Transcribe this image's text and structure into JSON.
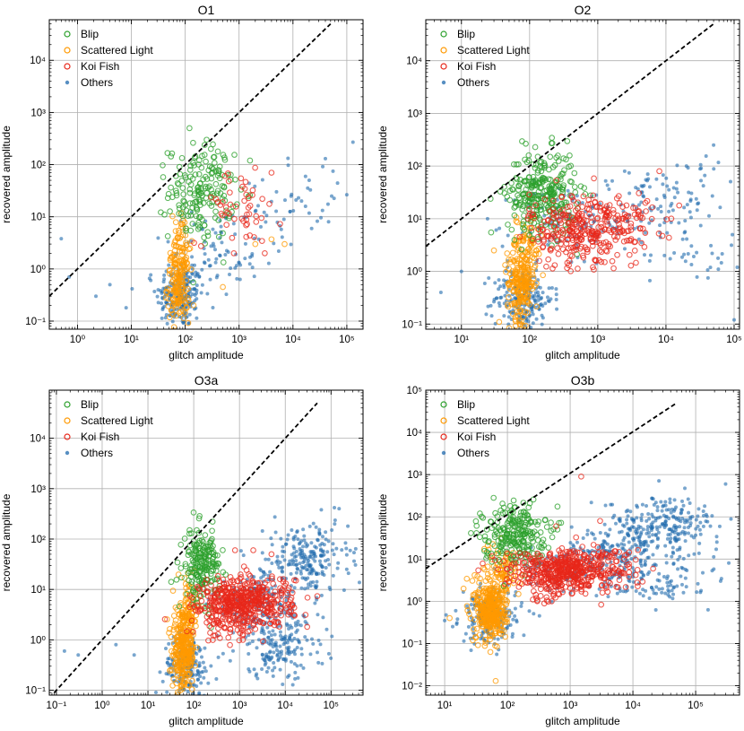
{
  "colors": {
    "blip": "#2ca02c",
    "scattered": "#ff9900",
    "koi": "#e8271a",
    "others": "#1f6aad",
    "diagonal": "#000000",
    "grid": "#b0b0b0"
  },
  "legend_labels": [
    "Blip",
    "Scattered Light",
    "Koi Fish",
    "Others"
  ],
  "chart_data": [
    {
      "type": "scatter",
      "title": "O1",
      "xlabel": "glitch amplitude",
      "ylabel": "recovered amplitude",
      "xscale": "log",
      "yscale": "log",
      "xlim": [
        0.3,
        200000
      ],
      "ylim": [
        0.07,
        60000
      ],
      "xticks": [
        1,
        10,
        100,
        1000,
        10000,
        100000
      ],
      "xtick_labels": [
        "10⁰",
        "10¹",
        "10²",
        "10³",
        "10⁴",
        "10⁵"
      ],
      "yticks": [
        0.1,
        1,
        10,
        100,
        1000,
        10000
      ],
      "ytick_labels": [
        "10⁻¹",
        "10⁰",
        "10¹",
        "10²",
        "10³",
        "10⁴"
      ],
      "grid": true,
      "legend": "top-left",
      "diagonal": {
        "x": [
          0.3,
          50000
        ],
        "y": [
          0.3,
          50000
        ]
      },
      "series": [
        {
          "name": "Others",
          "marker": "filled",
          "clusters": [
            {
              "cx": 80,
              "cy": 0.3,
              "sx": 0.22,
              "sy": 0.3,
              "n": 200
            },
            {
              "cx": 300,
              "cy": 1.5,
              "sx": 0.45,
              "sy": 0.35,
              "n": 70
            },
            {
              "cx": 2000,
              "cy": 8,
              "sx": 0.55,
              "sy": 0.4,
              "n": 35
            },
            {
              "cx": 20000,
              "cy": 25,
              "sx": 0.45,
              "sy": 0.4,
              "n": 30
            }
          ],
          "points": [
            [
              0.5,
              3.8
            ],
            [
              0.7,
              0.7
            ],
            [
              2.2,
              0.3
            ],
            [
              4,
              0.5
            ],
            [
              8,
              0.18
            ],
            [
              130000,
              270
            ],
            [
              40000,
              130
            ],
            [
              20000,
              50
            ]
          ]
        },
        {
          "name": "Scattered Light",
          "marker": "open",
          "clusters": [
            {
              "cx": 75,
              "cy": 0.5,
              "sx": 0.1,
              "sy": 0.35,
              "n": 150
            },
            {
              "cx": 85,
              "cy": 3,
              "sx": 0.1,
              "sy": 0.3,
              "n": 40
            }
          ],
          "points": [
            [
              500,
              0.45
            ],
            [
              2000,
              3
            ],
            [
              4000,
              3.7
            ],
            [
              7000,
              3
            ]
          ]
        },
        {
          "name": "Blip",
          "marker": "open",
          "clusters": [
            {
              "cx": 200,
              "cy": 30,
              "sx": 0.3,
              "sy": 0.45,
              "n": 180
            }
          ],
          "points": [
            [
              120,
              500
            ],
            [
              250,
              300
            ],
            [
              300,
              200
            ]
          ]
        },
        {
          "name": "Koi Fish",
          "marker": "open",
          "clusters": [
            {
              "cx": 1000,
              "cy": 15,
              "sx": 0.4,
              "sy": 0.35,
              "n": 50
            }
          ],
          "points": [
            [
              4000,
              70
            ],
            [
              800,
              2
            ],
            [
              3000,
              2
            ]
          ]
        }
      ]
    },
    {
      "type": "scatter",
      "title": "O2",
      "xlabel": "glitch amplitude",
      "ylabel": "recovered amplitude",
      "xscale": "log",
      "yscale": "log",
      "xlim": [
        3,
        120000
      ],
      "ylim": [
        0.08,
        60000
      ],
      "xticks": [
        10,
        100,
        1000,
        10000,
        100000
      ],
      "xtick_labels": [
        "10¹",
        "10²",
        "10³",
        "10⁴",
        "10⁵"
      ],
      "yticks": [
        0.1,
        1,
        10,
        100,
        1000,
        10000
      ],
      "ytick_labels": [
        "10⁻¹",
        "10⁰",
        "10¹",
        "10²",
        "10³",
        "10⁴"
      ],
      "grid": true,
      "legend": "top-left",
      "diagonal": {
        "x": [
          3,
          50000
        ],
        "y": [
          3,
          50000
        ]
      },
      "series": [
        {
          "name": "Others",
          "marker": "filled",
          "clusters": [
            {
              "cx": 80,
              "cy": 0.3,
              "sx": 0.22,
              "sy": 0.3,
              "n": 200
            },
            {
              "cx": 300,
              "cy": 8,
              "sx": 0.35,
              "sy": 0.4,
              "n": 80
            },
            {
              "cx": 5000,
              "cy": 15,
              "sx": 0.5,
              "sy": 0.35,
              "n": 80
            },
            {
              "cx": 20000,
              "cy": 40,
              "sx": 0.4,
              "sy": 0.35,
              "n": 40
            },
            {
              "cx": 30000,
              "cy": 2,
              "sx": 0.35,
              "sy": 0.2,
              "n": 30
            }
          ],
          "points": [
            [
              5,
              0.4
            ],
            [
              10,
              1
            ],
            [
              40,
              3
            ],
            [
              50000,
              250
            ],
            [
              100000,
              0.12
            ],
            [
              20000,
              100
            ]
          ]
        },
        {
          "name": "Scattered Light",
          "marker": "open",
          "clusters": [
            {
              "cx": 75,
              "cy": 0.6,
              "sx": 0.1,
              "sy": 0.35,
              "n": 200
            },
            {
              "cx": 90,
              "cy": 3,
              "sx": 0.12,
              "sy": 0.3,
              "n": 60
            }
          ],
          "points": [
            [
              30,
              2.5
            ]
          ]
        },
        {
          "name": "Blip",
          "marker": "open",
          "clusters": [
            {
              "cx": 150,
              "cy": 30,
              "sx": 0.25,
              "sy": 0.4,
              "n": 280
            }
          ],
          "points": [
            [
              200,
              150
            ]
          ]
        },
        {
          "name": "Koi Fish",
          "marker": "open",
          "clusters": [
            {
              "cx": 800,
              "cy": 8,
              "sx": 0.45,
              "sy": 0.3,
              "n": 280
            },
            {
              "cx": 500,
              "cy": 3,
              "sx": 0.3,
              "sy": 0.25,
              "n": 60
            }
          ],
          "points": [
            [
              8000,
              80
            ],
            [
              5000,
              20
            ]
          ]
        }
      ]
    },
    {
      "type": "scatter",
      "title": "O3a",
      "xlabel": "glitch amplitude",
      "ylabel": "recovered amplitude",
      "xscale": "log",
      "yscale": "log",
      "xlim": [
        0.07,
        500000
      ],
      "ylim": [
        0.08,
        90000
      ],
      "xticks": [
        0.1,
        1,
        10,
        100,
        1000,
        10000,
        100000
      ],
      "xtick_labels": [
        "10⁻¹",
        "10⁰",
        "10¹",
        "10²",
        "10³",
        "10⁴",
        "10⁵"
      ],
      "yticks": [
        0.1,
        1,
        10,
        100,
        1000,
        10000
      ],
      "ytick_labels": [
        "10⁻¹",
        "10⁰",
        "10¹",
        "10²",
        "10³",
        "10⁴"
      ],
      "grid": true,
      "legend": "top-left",
      "diagonal": {
        "x": [
          0.07,
          50000
        ],
        "y": [
          0.07,
          50000
        ]
      },
      "series": [
        {
          "name": "Others",
          "marker": "filled",
          "clusters": [
            {
              "cx": 70,
              "cy": 0.3,
              "sx": 0.25,
              "sy": 0.3,
              "n": 200
            },
            {
              "cx": 30000,
              "cy": 40,
              "sx": 0.45,
              "sy": 0.35,
              "n": 220
            },
            {
              "cx": 8000,
              "cy": 0.7,
              "sx": 0.5,
              "sy": 0.3,
              "n": 160
            },
            {
              "cx": 3000,
              "cy": 5,
              "sx": 0.55,
              "sy": 0.35,
              "n": 160
            }
          ],
          "points": [
            [
              0.15,
              0.6
            ],
            [
              0.3,
              0.5
            ],
            [
              2,
              0.8
            ],
            [
              5,
              0.5
            ],
            [
              150000,
              400
            ],
            [
              120000,
              200
            ]
          ]
        },
        {
          "name": "Scattered Light",
          "marker": "open",
          "clusters": [
            {
              "cx": 60,
              "cy": 0.6,
              "sx": 0.12,
              "sy": 0.38,
              "n": 280
            },
            {
              "cx": 80,
              "cy": 4,
              "sx": 0.12,
              "sy": 0.3,
              "n": 60
            }
          ],
          "points": []
        },
        {
          "name": "Blip",
          "marker": "open",
          "clusters": [
            {
              "cx": 150,
              "cy": 30,
              "sx": 0.2,
              "sy": 0.35,
              "n": 200
            }
          ],
          "points": [
            [
              250,
              100
            ]
          ]
        },
        {
          "name": "Koi Fish",
          "marker": "open",
          "clusters": [
            {
              "cx": 1500,
              "cy": 6,
              "sx": 0.5,
              "sy": 0.25,
              "n": 400
            },
            {
              "cx": 600,
              "cy": 3,
              "sx": 0.35,
              "sy": 0.25,
              "n": 120
            }
          ],
          "points": [
            [
              2000,
              60
            ],
            [
              5000,
              50
            ],
            [
              800,
              60
            ]
          ]
        }
      ]
    },
    {
      "type": "scatter",
      "title": "O3b",
      "xlabel": "glitch amplitude",
      "ylabel": "recovered amplitude",
      "xscale": "log",
      "yscale": "log",
      "xlim": [
        5,
        500000
      ],
      "ylim": [
        0.006,
        100000
      ],
      "xticks": [
        10,
        100,
        1000,
        10000,
        100000
      ],
      "xtick_labels": [
        "10¹",
        "10²",
        "10³",
        "10⁴",
        "10⁵"
      ],
      "yticks": [
        0.01,
        0.1,
        1,
        10,
        100,
        1000,
        10000,
        100000
      ],
      "ytick_labels": [
        "10⁻²",
        "10⁻¹",
        "10⁰",
        "10¹",
        "10²",
        "10³",
        "10⁴",
        "10⁵"
      ],
      "grid": true,
      "legend": "top-left",
      "diagonal": {
        "x": [
          5,
          50000
        ],
        "y": [
          6,
          50000
        ]
      },
      "series": [
        {
          "name": "Others",
          "marker": "filled",
          "clusters": [
            {
              "cx": 50,
              "cy": 0.4,
              "sx": 0.22,
              "sy": 0.3,
              "n": 180
            },
            {
              "cx": 30000,
              "cy": 60,
              "sx": 0.45,
              "sy": 0.35,
              "n": 240
            },
            {
              "cx": 5000,
              "cy": 15,
              "sx": 0.45,
              "sy": 0.3,
              "n": 160
            },
            {
              "cx": 20000,
              "cy": 3,
              "sx": 0.45,
              "sy": 0.25,
              "n": 100
            },
            {
              "cx": 500,
              "cy": 4,
              "sx": 0.45,
              "sy": 0.35,
              "n": 80
            }
          ],
          "points": [
            [
              10,
              0.35
            ],
            [
              15,
              0.6
            ],
            [
              300000,
              600
            ],
            [
              250000,
              3
            ]
          ]
        },
        {
          "name": "Scattered Light",
          "marker": "open",
          "clusters": [
            {
              "cx": 55,
              "cy": 0.6,
              "sx": 0.12,
              "sy": 0.35,
              "n": 350
            },
            {
              "cx": 80,
              "cy": 5,
              "sx": 0.15,
              "sy": 0.35,
              "n": 80
            }
          ],
          "points": [
            [
              65,
              0.013
            ],
            [
              20,
              2
            ],
            [
              12,
              0.4
            ]
          ]
        },
        {
          "name": "Blip",
          "marker": "open",
          "clusters": [
            {
              "cx": 130,
              "cy": 40,
              "sx": 0.25,
              "sy": 0.35,
              "n": 240
            }
          ],
          "points": [
            [
              180,
              130
            ]
          ]
        },
        {
          "name": "Koi Fish",
          "marker": "open",
          "clusters": [
            {
              "cx": 1000,
              "cy": 6,
              "sx": 0.5,
              "sy": 0.25,
              "n": 420
            },
            {
              "cx": 500,
              "cy": 3,
              "sx": 0.35,
              "sy": 0.25,
              "n": 100
            }
          ],
          "points": [
            [
              1500,
              900
            ],
            [
              600,
              60
            ],
            [
              3000,
              80
            ]
          ]
        }
      ]
    }
  ]
}
